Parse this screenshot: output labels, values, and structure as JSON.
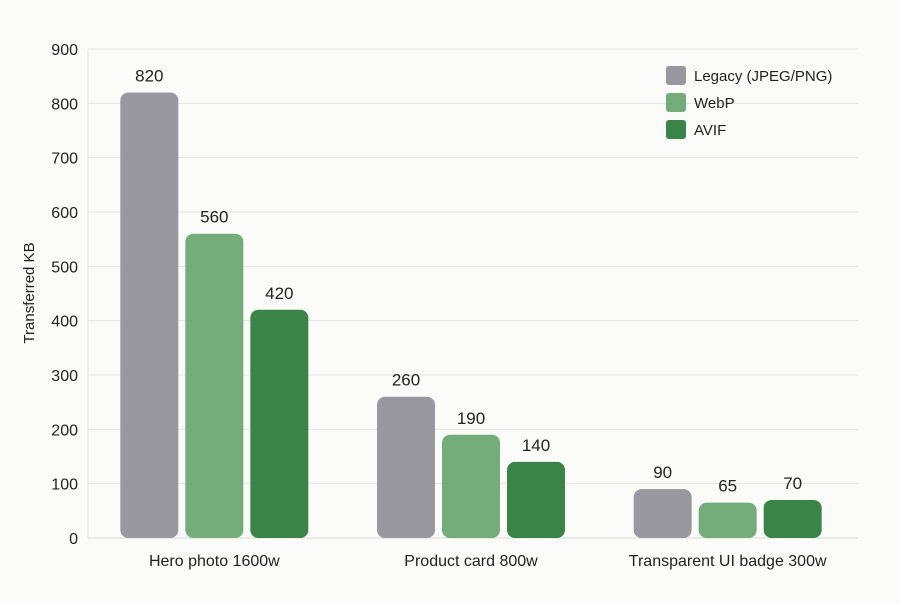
{
  "chart_data": {
    "type": "bar",
    "title": "",
    "xlabel": "",
    "ylabel": "Transferred KB",
    "ylim": [
      0,
      900
    ],
    "yticks": [
      0,
      100,
      200,
      300,
      400,
      500,
      600,
      700,
      800,
      900
    ],
    "grid": true,
    "legend_position": "top-right",
    "categories": [
      "Hero photo 1600w",
      "Product card 800w",
      "Transparent UI badge 300w"
    ],
    "series": [
      {
        "name": "Legacy (JPEG/PNG)",
        "color": "#98989e",
        "values": [
          820,
          260,
          90
        ]
      },
      {
        "name": "WebP",
        "color": "#74ad7a",
        "values": [
          560,
          190,
          65
        ]
      },
      {
        "name": "AVIF",
        "color": "#3a8448",
        "values": [
          420,
          140,
          70
        ]
      }
    ],
    "data_labels": true
  }
}
